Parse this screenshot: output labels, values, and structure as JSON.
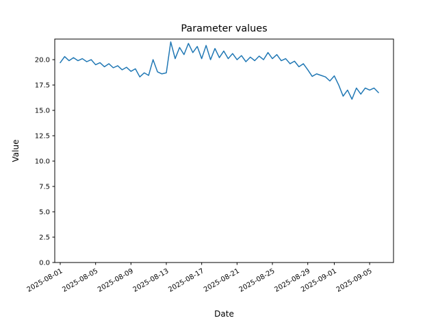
{
  "figure": {
    "background": "#ffffff",
    "axes_edge_color": "#000000"
  },
  "chart_data": {
    "type": "line",
    "title": "Parameter values",
    "xlabel": "Date",
    "ylabel": "Value",
    "grid": false,
    "legend": "none",
    "line_color": "#1f77b4",
    "line_width": 1.5,
    "ylim": [
      0.0,
      22.03
    ],
    "xlim_days_from_2025_08_01": [
      -0.62,
      37.7
    ],
    "y_ticks": [
      0.0,
      2.5,
      5.0,
      7.5,
      10.0,
      12.5,
      15.0,
      17.5,
      20.0
    ],
    "x_ticks": [
      {
        "label": "2025-08-01",
        "day_offset": 0
      },
      {
        "label": "2025-08-05",
        "day_offset": 4
      },
      {
        "label": "2025-08-09",
        "day_offset": 8
      },
      {
        "label": "2025-08-13",
        "day_offset": 12
      },
      {
        "label": "2025-08-17",
        "day_offset": 16
      },
      {
        "label": "2025-08-21",
        "day_offset": 20
      },
      {
        "label": "2025-08-25",
        "day_offset": 24
      },
      {
        "label": "2025-08-29",
        "day_offset": 28
      },
      {
        "label": "2025-09-01",
        "day_offset": 31
      },
      {
        "label": "2025-09-05",
        "day_offset": 35
      }
    ],
    "x_tick_label_rotation_deg": 30,
    "series": [
      {
        "name": "parameter-values",
        "x_start_date": "2025-08-01",
        "x_end_date": "2025-09-06",
        "x_step_days": 0.5,
        "values": [
          19.7,
          20.3,
          19.9,
          20.2,
          19.9,
          20.1,
          19.8,
          20.0,
          19.5,
          19.7,
          19.3,
          19.6,
          19.2,
          19.4,
          19.0,
          19.25,
          18.85,
          19.1,
          18.3,
          18.7,
          18.45,
          20.0,
          18.8,
          18.6,
          18.7,
          21.75,
          20.1,
          21.2,
          20.5,
          21.6,
          20.7,
          21.3,
          20.1,
          21.4,
          20.0,
          21.1,
          20.2,
          20.85,
          20.1,
          20.6,
          20.0,
          20.4,
          19.8,
          20.25,
          19.9,
          20.35,
          20.0,
          20.7,
          20.1,
          20.5,
          19.9,
          20.1,
          19.6,
          19.85,
          19.3,
          19.6,
          19.0,
          18.35,
          18.6,
          18.45,
          18.3,
          17.9,
          18.4,
          17.5,
          16.4,
          17.0,
          16.1,
          17.2,
          16.6,
          17.2,
          17.0,
          17.2,
          16.75
        ]
      }
    ]
  }
}
